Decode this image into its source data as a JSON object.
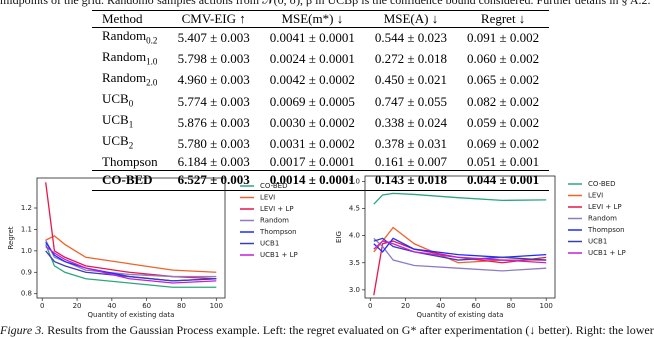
{
  "top_text": "midpoints of the grid. Randomσ samples actions from 𝒩(0, σ), β in UCBβ is the confidence bound considered. Further details in § A.2.",
  "table": {
    "header": [
      "Method",
      "CMV-EIG ↑",
      "MSE(m*) ↓",
      "MSE(A) ↓",
      "Regret ↓"
    ],
    "rows": [
      {
        "method": "Random",
        "sub": "0.2",
        "cells": [
          "5.407 ± 0.003",
          "0.0041 ± 0.0001",
          "0.544 ± 0.023",
          "0.091 ± 0.002"
        ]
      },
      {
        "method": "Random",
        "sub": "1.0",
        "cells": [
          "5.798 ± 0.003",
          "0.0024 ± 0.0001",
          "0.272 ± 0.018",
          "0.060 ± 0.002"
        ]
      },
      {
        "method": "Random",
        "sub": "2.0",
        "cells": [
          "4.960 ± 0.003",
          "0.0042 ± 0.0002",
          "0.450 ± 0.021",
          "0.065 ± 0.002"
        ]
      },
      {
        "method": "UCB",
        "sub": "0",
        "cells": [
          "5.774 ± 0.003",
          "0.0069 ± 0.0005",
          "0.747 ± 0.055",
          "0.082 ± 0.002"
        ]
      },
      {
        "method": "UCB",
        "sub": "1",
        "cells": [
          "5.876 ± 0.003",
          "0.0030 ± 0.0002",
          "0.338 ± 0.024",
          "0.059 ± 0.002"
        ]
      },
      {
        "method": "UCB",
        "sub": "2",
        "cells": [
          "5.780 ± 0.003",
          "0.0031 ± 0.0002",
          "0.378 ± 0.031",
          "0.069 ± 0.002"
        ]
      },
      {
        "method": "Thompson",
        "cells": [
          "6.184 ± 0.003",
          "0.0017 ± 0.0001",
          "0.161 ± 0.007",
          "0.051 ± 0.001"
        ]
      },
      {
        "method": "CO-BED",
        "cells": [
          "6.527 ± 0.003",
          "0.0014 ± 0.0001",
          "0.143 ± 0.018",
          "0.044 ± 0.001"
        ]
      }
    ]
  },
  "chart_data": [
    {
      "type": "line",
      "xlabel": "Quantity of existing data",
      "ylabel": "Regret",
      "x": [
        2,
        7,
        13,
        25,
        50,
        75,
        100
      ],
      "xlim": [
        -3,
        105
      ],
      "xticks": [
        0,
        20,
        40,
        60,
        80,
        100
      ],
      "ylim": [
        0.78,
        1.34
      ],
      "yticks": [
        0.8,
        0.9,
        {
          "value": 1,
          "label": "1.0"
        },
        1.1,
        1.2
      ],
      "series": [
        {
          "name": "CO-BED",
          "color": "#2ca77a",
          "values": [
            1.03,
            0.93,
            0.9,
            0.87,
            0.85,
            0.83,
            0.83
          ]
        },
        {
          "name": "LEVI",
          "color": "#f0622a",
          "values": [
            1.05,
            1.07,
            1.03,
            0.97,
            0.94,
            0.91,
            0.9
          ]
        },
        {
          "name": "LEVI + LP",
          "color": "#e8174a",
          "values": [
            1.32,
            1.0,
            0.97,
            0.93,
            0.9,
            0.88,
            0.87
          ]
        },
        {
          "name": "Random",
          "color": "#8e7cc3",
          "values": [
            1.05,
            0.97,
            0.95,
            0.91,
            0.89,
            0.88,
            0.88
          ]
        },
        {
          "name": "Thompson",
          "color": "#1f2bff",
          "values": [
            1.04,
            0.98,
            0.95,
            0.92,
            0.88,
            0.86,
            0.87
          ]
        },
        {
          "name": "UCB1",
          "color": "#3a3fb0",
          "values": [
            1.0,
            0.95,
            0.93,
            0.9,
            0.88,
            0.86,
            0.87
          ]
        },
        {
          "name": "UCB1 + LP",
          "color": "#c21fd9",
          "values": [
            1.02,
            0.99,
            0.96,
            0.92,
            0.87,
            0.85,
            0.86
          ]
        }
      ]
    },
    {
      "type": "line",
      "xlabel": "Quantity of existing data",
      "ylabel": "EIG",
      "x": [
        2,
        7,
        13,
        25,
        50,
        75,
        100
      ],
      "xlim": [
        -3,
        105
      ],
      "xticks": [
        0,
        20,
        40,
        60,
        80,
        100
      ],
      "ylim": [
        2.85,
        5.1
      ],
      "yticks": [
        {
          "value": 3,
          "label": "3.0"
        },
        3.5,
        {
          "value": 4,
          "label": "4.0"
        },
        4.5,
        {
          "value": 5,
          "label": "5.0"
        }
      ],
      "series": [
        {
          "name": "CO-BED",
          "color": "#2ca77a",
          "values": [
            4.58,
            4.75,
            4.78,
            4.76,
            4.7,
            4.65,
            4.66
          ]
        },
        {
          "name": "LEVI",
          "color": "#f0622a",
          "values": [
            3.7,
            3.9,
            4.15,
            3.85,
            3.5,
            3.55,
            3.55
          ]
        },
        {
          "name": "LEVI + LP",
          "color": "#e8174a",
          "values": [
            2.9,
            3.85,
            3.9,
            3.75,
            3.6,
            3.5,
            3.6
          ]
        },
        {
          "name": "Random",
          "color": "#8e7cc3",
          "values": [
            3.95,
            3.8,
            3.55,
            3.45,
            3.4,
            3.35,
            3.4
          ]
        },
        {
          "name": "Thompson",
          "color": "#1f2bff",
          "values": [
            3.85,
            3.7,
            3.95,
            3.75,
            3.65,
            3.6,
            3.65
          ]
        },
        {
          "name": "UCB1",
          "color": "#3a3fb0",
          "values": [
            3.9,
            3.95,
            3.8,
            3.7,
            3.55,
            3.6,
            3.55
          ]
        },
        {
          "name": "UCB1 + LP",
          "color": "#c21fd9",
          "values": [
            3.75,
            3.9,
            3.85,
            3.7,
            3.6,
            3.55,
            3.5
          ]
        }
      ]
    }
  ],
  "caption": {
    "label": "Figure 3.",
    "text": "Results from the Gaussian Process example. Left: the regret evaluated on G* after experimentation (↓ better). Right: the lower"
  }
}
